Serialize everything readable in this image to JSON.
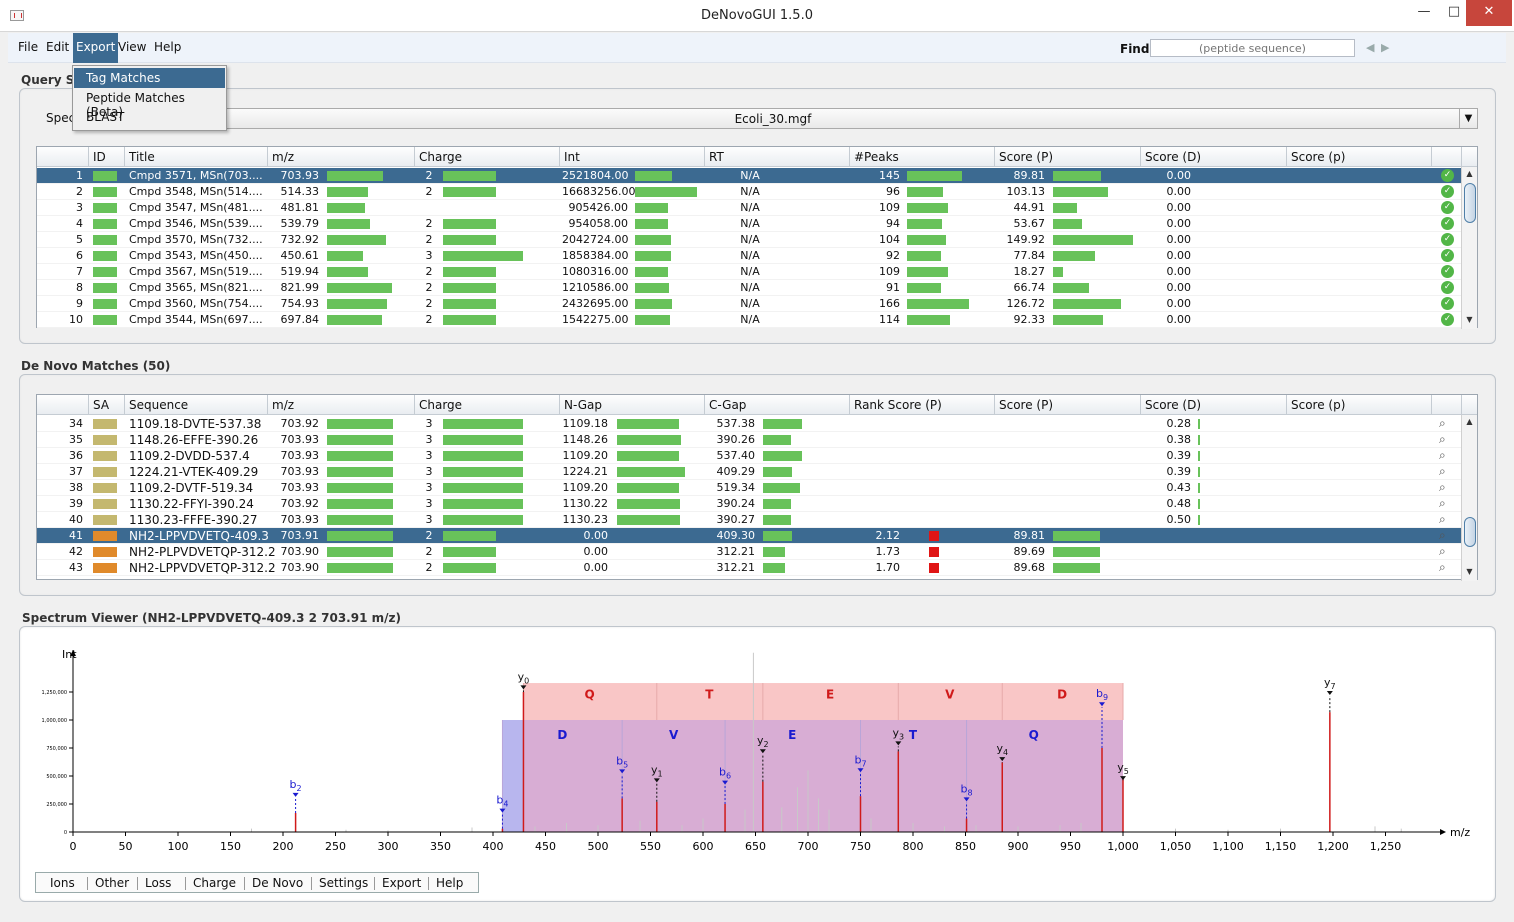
{
  "window": {
    "title": "DeNovoGUI 1.5.0"
  },
  "menu": {
    "file": "File",
    "edit": "Edit",
    "export": "Export",
    "view": "View",
    "help": "Help"
  },
  "find": {
    "label": "Find",
    "placeholder": "(peptide sequence)"
  },
  "export_menu": [
    "Tag Matches",
    "Peptide Matches (Beta)",
    "BLAST"
  ],
  "query": {
    "title": "Query Spectra",
    "spectrum_label": "Spectrum File",
    "spectrum_file": "Ecoli_30.mgf",
    "columns": [
      "",
      "ID",
      "Title",
      "m/z",
      "Charge",
      "Int",
      "RT",
      "#Peaks",
      "Score (P)",
      "Score (D)",
      "Score (p)"
    ],
    "rows": [
      {
        "n": "1",
        "title": "Cmpd 3571,  MSn(703....",
        "mz": "703.93",
        "charge": "2",
        "int": "2521804.00",
        "rt": "N/A",
        "peaks": "145",
        "scoreP": "89.81",
        "scoreD": "0.00",
        "mzf": 0.66,
        "cf": 0.66,
        "intf": 0.6,
        "pf": 0.67,
        "spf": 0.6
      },
      {
        "n": "2",
        "title": "Cmpd 3548,  MSn(514....",
        "mz": "514.33",
        "charge": "2",
        "int": "16683256.00",
        "rt": "N/A",
        "peaks": "96",
        "scoreP": "103.13",
        "scoreD": "0.00",
        "mzf": 0.48,
        "cf": 0.66,
        "intf": 1.0,
        "pf": 0.44,
        "spf": 0.69
      },
      {
        "n": "3",
        "title": "Cmpd 3547,  MSn(481....",
        "mz": "481.81",
        "charge": "",
        "int": "905426.00",
        "rt": "N/A",
        "peaks": "109",
        "scoreP": "44.91",
        "scoreD": "0.00",
        "mzf": 0.45,
        "cf": 0,
        "intf": 0.53,
        "pf": 0.5,
        "spf": 0.3
      },
      {
        "n": "4",
        "title": "Cmpd 3546,  MSn(539....",
        "mz": "539.79",
        "charge": "2",
        "int": "954058.00",
        "rt": "N/A",
        "peaks": "94",
        "scoreP": "53.67",
        "scoreD": "0.00",
        "mzf": 0.5,
        "cf": 0.66,
        "intf": 0.53,
        "pf": 0.43,
        "spf": 0.36
      },
      {
        "n": "5",
        "title": "Cmpd 3570,  MSn(732....",
        "mz": "732.92",
        "charge": "2",
        "int": "2042724.00",
        "rt": "N/A",
        "peaks": "104",
        "scoreP": "149.92",
        "scoreD": "0.00",
        "mzf": 0.69,
        "cf": 0.66,
        "intf": 0.58,
        "pf": 0.47,
        "spf": 1.0
      },
      {
        "n": "6",
        "title": "Cmpd 3543,  MSn(450....",
        "mz": "450.61",
        "charge": "3",
        "int": "1858384.00",
        "rt": "N/A",
        "peaks": "92",
        "scoreP": "77.84",
        "scoreD": "0.00",
        "mzf": 0.42,
        "cf": 1.0,
        "intf": 0.58,
        "pf": 0.42,
        "spf": 0.52
      },
      {
        "n": "7",
        "title": "Cmpd 3567,  MSn(519....",
        "mz": "519.94",
        "charge": "2",
        "int": "1080316.00",
        "rt": "N/A",
        "peaks": "109",
        "scoreP": "18.27",
        "scoreD": "0.00",
        "mzf": 0.48,
        "cf": 0.66,
        "intf": 0.54,
        "pf": 0.5,
        "spf": 0.12
      },
      {
        "n": "8",
        "title": "Cmpd 3565,  MSn(821....",
        "mz": "821.99",
        "charge": "2",
        "int": "1210586.00",
        "rt": "N/A",
        "peaks": "91",
        "scoreP": "66.74",
        "scoreD": "0.00",
        "mzf": 0.77,
        "cf": 0.66,
        "intf": 0.55,
        "pf": 0.41,
        "spf": 0.45
      },
      {
        "n": "9",
        "title": "Cmpd 3560,  MSn(754....",
        "mz": "754.93",
        "charge": "2",
        "int": "2432695.00",
        "rt": "N/A",
        "peaks": "166",
        "scoreP": "126.72",
        "scoreD": "0.00",
        "mzf": 0.71,
        "cf": 0.66,
        "intf": 0.6,
        "pf": 0.75,
        "spf": 0.85
      },
      {
        "n": "10",
        "title": "Cmpd 3544,  MSn(697....",
        "mz": "697.84",
        "charge": "2",
        "int": "1542275.00",
        "rt": "N/A",
        "peaks": "114",
        "scoreP": "92.33",
        "scoreD": "0.00",
        "mzf": 0.65,
        "cf": 0.66,
        "intf": 0.57,
        "pf": 0.52,
        "spf": 0.62
      }
    ]
  },
  "denovo": {
    "title": "De Novo Matches (50)",
    "columns": [
      "",
      "SA",
      "Sequence",
      "m/z",
      "Charge",
      "N-Gap",
      "C-Gap",
      "Rank Score (P)",
      "Score (P)",
      "Score (D)",
      "Score (p)"
    ],
    "rows": [
      {
        "n": "34",
        "sa": "#c4b86f",
        "seq": "1109.18-DVTE-537.38",
        "mz": "703.92",
        "charge": "3",
        "ngap": "1109.18",
        "cgap": "537.38",
        "rank": "",
        "scoreP": "",
        "scoreD": "0.28",
        "ngf": 0.72,
        "cgf": 0.55,
        "rkf": 0,
        "spf": 0
      },
      {
        "n": "35",
        "sa": "#c4b86f",
        "seq": "1148.26-EFFE-390.26",
        "mz": "703.93",
        "charge": "3",
        "ngap": "1148.26",
        "cgap": "390.26",
        "rank": "",
        "scoreP": "",
        "scoreD": "0.38",
        "ngf": 0.74,
        "cgf": 0.4,
        "rkf": 0,
        "spf": 0
      },
      {
        "n": "36",
        "sa": "#c4b86f",
        "seq": "1109.2-DVDD-537.4",
        "mz": "703.93",
        "charge": "3",
        "ngap": "1109.20",
        "cgap": "537.40",
        "rank": "",
        "scoreP": "",
        "scoreD": "0.39",
        "ngf": 0.72,
        "cgf": 0.55,
        "rkf": 0,
        "spf": 0
      },
      {
        "n": "37",
        "sa": "#c4b86f",
        "seq": "1224.21-VTEK-409.29",
        "mz": "703.93",
        "charge": "3",
        "ngap": "1224.21",
        "cgap": "409.29",
        "rank": "",
        "scoreP": "",
        "scoreD": "0.39",
        "ngf": 0.79,
        "cgf": 0.42,
        "rkf": 0,
        "spf": 0
      },
      {
        "n": "38",
        "sa": "#c4b86f",
        "seq": "1109.2-DVTF-519.34",
        "mz": "703.93",
        "charge": "3",
        "ngap": "1109.20",
        "cgap": "519.34",
        "rank": "",
        "scoreP": "",
        "scoreD": "0.43",
        "ngf": 0.72,
        "cgf": 0.53,
        "rkf": 0,
        "spf": 0
      },
      {
        "n": "39",
        "sa": "#c4b86f",
        "seq": "1130.22-FFYI-390.24",
        "mz": "703.92",
        "charge": "3",
        "ngap": "1130.22",
        "cgap": "390.24",
        "rank": "",
        "scoreP": "",
        "scoreD": "0.48",
        "ngf": 0.73,
        "cgf": 0.4,
        "rkf": 0,
        "spf": 0
      },
      {
        "n": "40",
        "sa": "#c4b86f",
        "seq": "1130.23-FFFE-390.27",
        "mz": "703.93",
        "charge": "3",
        "ngap": "1130.23",
        "cgap": "390.27",
        "rank": "",
        "scoreP": "",
        "scoreD": "0.50",
        "ngf": 0.73,
        "cgf": 0.4,
        "rkf": 0,
        "spf": 0
      },
      {
        "n": "41",
        "sa": "#e08a2b",
        "seq": "NH2-LPPVDVETQ-409.3",
        "mz": "703.91",
        "charge": "2",
        "ngap": "0.00",
        "cgap": "409.30",
        "rank": "2.12",
        "scoreP": "89.81",
        "scoreD": "",
        "ngf": 0,
        "cgf": 0.42,
        "rkf": 1,
        "spf": 0.6
      },
      {
        "n": "42",
        "sa": "#e08a2b",
        "seq": "NH2-PLPVDVETQP-312.2",
        "mz": "703.90",
        "charge": "2",
        "ngap": "0.00",
        "cgap": "312.21",
        "rank": "1.73",
        "scoreP": "89.69",
        "scoreD": "",
        "ngf": 0,
        "cgf": 0.32,
        "rkf": 1,
        "spf": 0.6
      },
      {
        "n": "43",
        "sa": "#e08a2b",
        "seq": "NH2-LPPVDVETQP-312.2",
        "mz": "703.90",
        "charge": "2",
        "ngap": "0.00",
        "cgap": "312.21",
        "rank": "1.70",
        "scoreP": "89.68",
        "scoreD": "",
        "ngf": 0,
        "cgf": 0.32,
        "rkf": 1,
        "spf": 0.6
      }
    ]
  },
  "spectrum_viewer": {
    "title": "Spectrum Viewer (NH2-LPPVDVETQ-409.3   2   703.91 m/z)",
    "ylabel": "Int",
    "xlabel": "m/z",
    "x_ticks": [
      "0",
      "50",
      "100",
      "150",
      "200",
      "250",
      "300",
      "350",
      "400",
      "450",
      "500",
      "550",
      "600",
      "650",
      "700",
      "750",
      "800",
      "850",
      "900",
      "950",
      "1,000",
      "1,050",
      "1,100",
      "1,150",
      "1,200",
      "1,250"
    ],
    "y_ticks": [
      "0",
      "250,000",
      "500,000",
      "750,000",
      "1,000,000",
      "1,250,000"
    ],
    "y_series": [
      "Q",
      "T",
      "E",
      "V",
      "D"
    ],
    "b_series": [
      "D",
      "V",
      "E",
      "T",
      "Q"
    ],
    "annotations": [
      {
        "ion": "b",
        "sub": "2",
        "mz": 212,
        "h": 0.17,
        "lab": 0.34
      },
      {
        "ion": "b",
        "sub": "4",
        "mz": 409,
        "h": 0.03,
        "lab": 0.2
      },
      {
        "ion": "y",
        "sub": "0",
        "mz": 429,
        "h": 1.25,
        "lab": 1.3
      },
      {
        "ion": "b",
        "sub": "5",
        "mz": 523,
        "h": 0.3,
        "lab": 0.55
      },
      {
        "ion": "y",
        "sub": "1",
        "mz": 556,
        "h": 0.27,
        "lab": 0.47
      },
      {
        "ion": "b",
        "sub": "6",
        "mz": 621,
        "h": 0.25,
        "lab": 0.45
      },
      {
        "ion": "y",
        "sub": "2",
        "mz": 657,
        "h": 0.45,
        "lab": 0.73
      },
      {
        "ion": "b",
        "sub": "7",
        "mz": 750,
        "h": 0.32,
        "lab": 0.56
      },
      {
        "ion": "y",
        "sub": "3",
        "mz": 786,
        "h": 0.72,
        "lab": 0.8
      },
      {
        "ion": "b",
        "sub": "8",
        "mz": 851,
        "h": 0.12,
        "lab": 0.3
      },
      {
        "ion": "y",
        "sub": "4",
        "mz": 885,
        "h": 0.62,
        "lab": 0.66
      },
      {
        "ion": "b",
        "sub": "9",
        "mz": 980,
        "h": 0.75,
        "lab": 1.15
      },
      {
        "ion": "y",
        "sub": "5",
        "mz": 1000,
        "h": 0.48,
        "lab": 0.49
      },
      {
        "ion": "y",
        "sub": "7",
        "mz": 1197,
        "h": 1.07,
        "lab": 1.25
      }
    ],
    "tabs": [
      "Ions",
      "Other",
      "Loss",
      "Charge",
      "De Novo",
      "Settings",
      "Export",
      "Help"
    ]
  }
}
